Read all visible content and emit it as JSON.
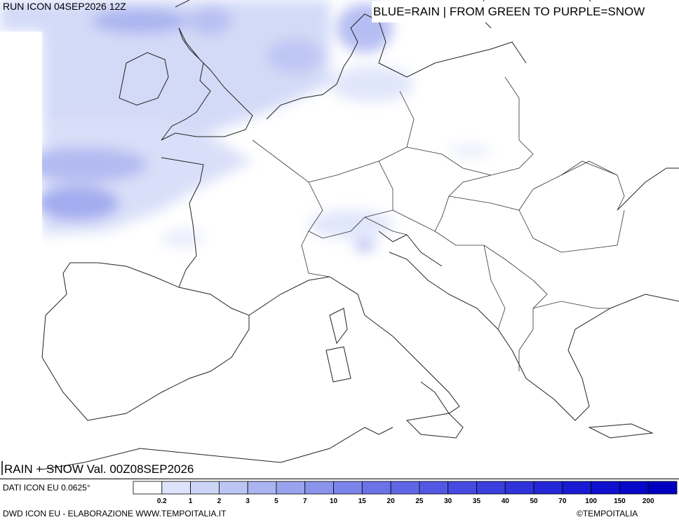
{
  "header": {
    "run": "RUN ICON 04SEP2026 12Z",
    "legend_note": "BLUE=RAIN | FROM GREEN TO PURPLE=SNOW"
  },
  "map": {
    "valid": "RAIN + SNOW Val. 00Z08SEP2026"
  },
  "footer": {
    "data_source": "DATI ICON EU 0.0625°",
    "credit": "DWD ICON EU - ELABORAZIONE WWW.TEMPOITALIA.IT",
    "copyright": "©TEMPOITALIA"
  },
  "legend": {
    "labels": [
      0.2,
      1,
      2,
      3,
      5,
      7,
      10,
      15,
      20,
      25,
      30,
      35,
      40,
      50,
      70,
      100,
      150,
      200
    ],
    "colors": [
      "#ffffff",
      "#dde3fa",
      "#cdd5f7",
      "#bcc6f4",
      "#aab4f0",
      "#99a3ee",
      "#8a94ec",
      "#7b84ea",
      "#6c73e8",
      "#5f66e6",
      "#5258e3",
      "#454be0",
      "#3a3fdd",
      "#2e33da",
      "#2427d6",
      "#181bd2",
      "#0d10ce",
      "#0508c8",
      "#0000c0"
    ]
  }
}
